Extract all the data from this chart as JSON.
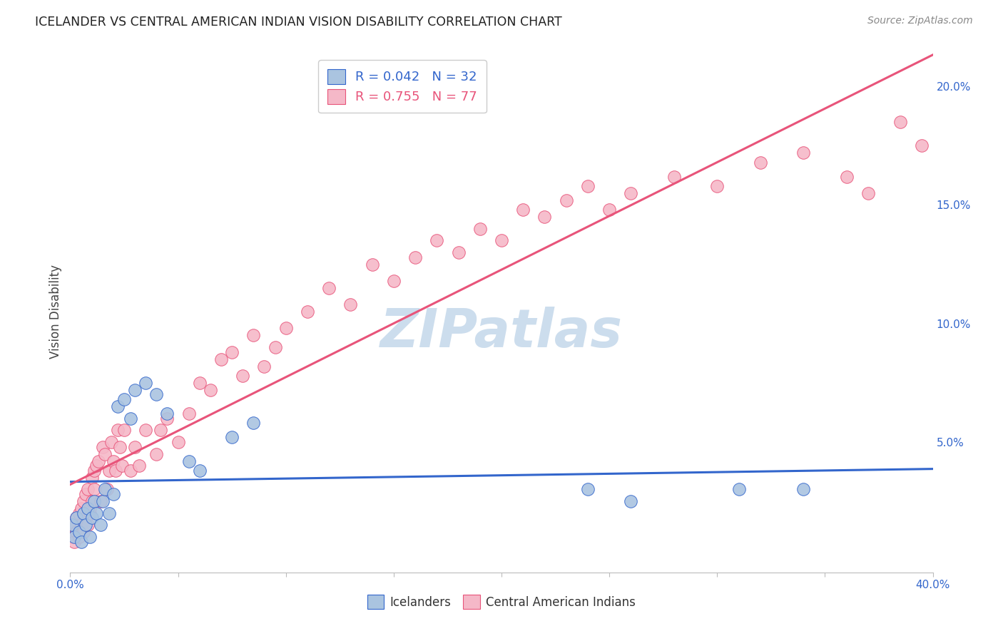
{
  "title": "ICELANDER VS CENTRAL AMERICAN INDIAN VISION DISABILITY CORRELATION CHART",
  "source": "Source: ZipAtlas.com",
  "ylabel": "Vision Disability",
  "y_ticks": [
    0.0,
    0.05,
    0.1,
    0.15,
    0.2
  ],
  "y_tick_labels": [
    "",
    "5.0%",
    "10.0%",
    "15.0%",
    "20.0%"
  ],
  "x_range": [
    0.0,
    0.4
  ],
  "y_range": [
    -0.005,
    0.215
  ],
  "icelanders_R": 0.042,
  "icelanders_N": 32,
  "central_american_R": 0.755,
  "central_american_N": 77,
  "icelanders_color": "#aac4e0",
  "central_american_color": "#f5b8c8",
  "icelanders_line_color": "#3366cc",
  "central_american_line_color": "#e8547a",
  "background_color": "#ffffff",
  "watermark_color": "#ccdded",
  "icelanders_x": [
    0.001,
    0.002,
    0.003,
    0.004,
    0.005,
    0.006,
    0.007,
    0.008,
    0.009,
    0.01,
    0.011,
    0.012,
    0.014,
    0.015,
    0.016,
    0.018,
    0.02,
    0.022,
    0.025,
    0.028,
    0.03,
    0.035,
    0.04,
    0.045,
    0.055,
    0.06,
    0.075,
    0.085,
    0.24,
    0.26,
    0.31,
    0.34
  ],
  "icelanders_y": [
    0.015,
    0.01,
    0.018,
    0.012,
    0.008,
    0.02,
    0.015,
    0.022,
    0.01,
    0.018,
    0.025,
    0.02,
    0.015,
    0.025,
    0.03,
    0.02,
    0.028,
    0.065,
    0.068,
    0.06,
    0.072,
    0.075,
    0.07,
    0.062,
    0.042,
    0.038,
    0.052,
    0.058,
    0.03,
    0.025,
    0.03,
    0.03
  ],
  "central_x": [
    0.001,
    0.002,
    0.002,
    0.003,
    0.003,
    0.004,
    0.004,
    0.005,
    0.005,
    0.006,
    0.006,
    0.007,
    0.007,
    0.008,
    0.008,
    0.009,
    0.009,
    0.01,
    0.01,
    0.011,
    0.011,
    0.012,
    0.013,
    0.014,
    0.015,
    0.016,
    0.017,
    0.018,
    0.019,
    0.02,
    0.021,
    0.022,
    0.023,
    0.024,
    0.025,
    0.028,
    0.03,
    0.032,
    0.035,
    0.04,
    0.042,
    0.045,
    0.05,
    0.055,
    0.06,
    0.065,
    0.07,
    0.075,
    0.08,
    0.085,
    0.09,
    0.095,
    0.1,
    0.11,
    0.12,
    0.13,
    0.14,
    0.15,
    0.16,
    0.17,
    0.18,
    0.19,
    0.2,
    0.21,
    0.22,
    0.23,
    0.24,
    0.25,
    0.26,
    0.28,
    0.3,
    0.32,
    0.34,
    0.36,
    0.37,
    0.385,
    0.395
  ],
  "central_y": [
    0.01,
    0.008,
    0.015,
    0.012,
    0.018,
    0.01,
    0.02,
    0.015,
    0.022,
    0.012,
    0.025,
    0.018,
    0.028,
    0.015,
    0.03,
    0.02,
    0.022,
    0.025,
    0.035,
    0.03,
    0.038,
    0.04,
    0.042,
    0.025,
    0.048,
    0.045,
    0.03,
    0.038,
    0.05,
    0.042,
    0.038,
    0.055,
    0.048,
    0.04,
    0.055,
    0.038,
    0.048,
    0.04,
    0.055,
    0.045,
    0.055,
    0.06,
    0.05,
    0.062,
    0.075,
    0.072,
    0.085,
    0.088,
    0.078,
    0.095,
    0.082,
    0.09,
    0.098,
    0.105,
    0.115,
    0.108,
    0.125,
    0.118,
    0.128,
    0.135,
    0.13,
    0.14,
    0.135,
    0.148,
    0.145,
    0.152,
    0.158,
    0.148,
    0.155,
    0.162,
    0.158,
    0.168,
    0.172,
    0.162,
    0.155,
    0.185,
    0.175
  ]
}
